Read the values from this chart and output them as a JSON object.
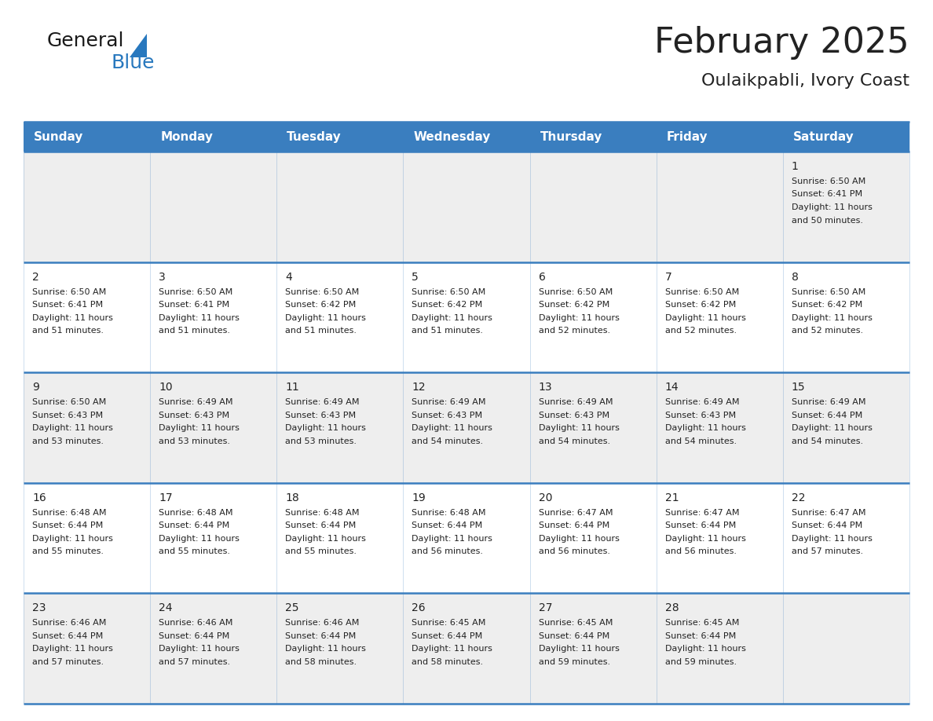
{
  "title": "February 2025",
  "subtitle": "Oulaikpabli, Ivory Coast",
  "header_color": "#3a7ebf",
  "header_text_color": "#ffffff",
  "cell_bg_row0": "#eeeeee",
  "cell_bg_row1": "#ffffff",
  "cell_bg_row2": "#eeeeee",
  "cell_bg_row3": "#ffffff",
  "cell_bg_row4": "#eeeeee",
  "grid_line_color": "#3a7ebf",
  "text_color": "#222222",
  "days_of_week": [
    "Sunday",
    "Monday",
    "Tuesday",
    "Wednesday",
    "Thursday",
    "Friday",
    "Saturday"
  ],
  "logo_color1": "#1a1a1a",
  "logo_color2": "#2878be",
  "title_fontsize": 32,
  "subtitle_fontsize": 16,
  "header_fontsize": 11,
  "day_num_fontsize": 10,
  "cell_text_fontsize": 8,
  "calendar": [
    [
      null,
      null,
      null,
      null,
      null,
      null,
      {
        "day": 1,
        "sunrise": "6:50 AM",
        "sunset": "6:41 PM",
        "daylight": "11 hours and 50 minutes."
      }
    ],
    [
      {
        "day": 2,
        "sunrise": "6:50 AM",
        "sunset": "6:41 PM",
        "daylight": "11 hours and 51 minutes."
      },
      {
        "day": 3,
        "sunrise": "6:50 AM",
        "sunset": "6:41 PM",
        "daylight": "11 hours and 51 minutes."
      },
      {
        "day": 4,
        "sunrise": "6:50 AM",
        "sunset": "6:42 PM",
        "daylight": "11 hours and 51 minutes."
      },
      {
        "day": 5,
        "sunrise": "6:50 AM",
        "sunset": "6:42 PM",
        "daylight": "11 hours and 51 minutes."
      },
      {
        "day": 6,
        "sunrise": "6:50 AM",
        "sunset": "6:42 PM",
        "daylight": "11 hours and 52 minutes."
      },
      {
        "day": 7,
        "sunrise": "6:50 AM",
        "sunset": "6:42 PM",
        "daylight": "11 hours and 52 minutes."
      },
      {
        "day": 8,
        "sunrise": "6:50 AM",
        "sunset": "6:42 PM",
        "daylight": "11 hours and 52 minutes."
      }
    ],
    [
      {
        "day": 9,
        "sunrise": "6:50 AM",
        "sunset": "6:43 PM",
        "daylight": "11 hours and 53 minutes."
      },
      {
        "day": 10,
        "sunrise": "6:49 AM",
        "sunset": "6:43 PM",
        "daylight": "11 hours and 53 minutes."
      },
      {
        "day": 11,
        "sunrise": "6:49 AM",
        "sunset": "6:43 PM",
        "daylight": "11 hours and 53 minutes."
      },
      {
        "day": 12,
        "sunrise": "6:49 AM",
        "sunset": "6:43 PM",
        "daylight": "11 hours and 54 minutes."
      },
      {
        "day": 13,
        "sunrise": "6:49 AM",
        "sunset": "6:43 PM",
        "daylight": "11 hours and 54 minutes."
      },
      {
        "day": 14,
        "sunrise": "6:49 AM",
        "sunset": "6:43 PM",
        "daylight": "11 hours and 54 minutes."
      },
      {
        "day": 15,
        "sunrise": "6:49 AM",
        "sunset": "6:44 PM",
        "daylight": "11 hours and 54 minutes."
      }
    ],
    [
      {
        "day": 16,
        "sunrise": "6:48 AM",
        "sunset": "6:44 PM",
        "daylight": "11 hours and 55 minutes."
      },
      {
        "day": 17,
        "sunrise": "6:48 AM",
        "sunset": "6:44 PM",
        "daylight": "11 hours and 55 minutes."
      },
      {
        "day": 18,
        "sunrise": "6:48 AM",
        "sunset": "6:44 PM",
        "daylight": "11 hours and 55 minutes."
      },
      {
        "day": 19,
        "sunrise": "6:48 AM",
        "sunset": "6:44 PM",
        "daylight": "11 hours and 56 minutes."
      },
      {
        "day": 20,
        "sunrise": "6:47 AM",
        "sunset": "6:44 PM",
        "daylight": "11 hours and 56 minutes."
      },
      {
        "day": 21,
        "sunrise": "6:47 AM",
        "sunset": "6:44 PM",
        "daylight": "11 hours and 56 minutes."
      },
      {
        "day": 22,
        "sunrise": "6:47 AM",
        "sunset": "6:44 PM",
        "daylight": "11 hours and 57 minutes."
      }
    ],
    [
      {
        "day": 23,
        "sunrise": "6:46 AM",
        "sunset": "6:44 PM",
        "daylight": "11 hours and 57 minutes."
      },
      {
        "day": 24,
        "sunrise": "6:46 AM",
        "sunset": "6:44 PM",
        "daylight": "11 hours and 57 minutes."
      },
      {
        "day": 25,
        "sunrise": "6:46 AM",
        "sunset": "6:44 PM",
        "daylight": "11 hours and 58 minutes."
      },
      {
        "day": 26,
        "sunrise": "6:45 AM",
        "sunset": "6:44 PM",
        "daylight": "11 hours and 58 minutes."
      },
      {
        "day": 27,
        "sunrise": "6:45 AM",
        "sunset": "6:44 PM",
        "daylight": "11 hours and 59 minutes."
      },
      {
        "day": 28,
        "sunrise": "6:45 AM",
        "sunset": "6:44 PM",
        "daylight": "11 hours and 59 minutes."
      },
      null
    ]
  ]
}
